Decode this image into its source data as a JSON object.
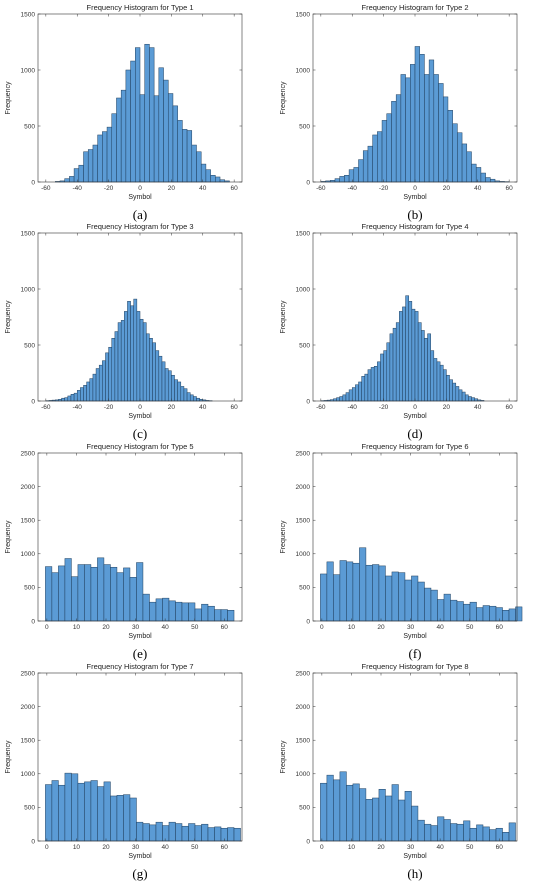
{
  "figure": {
    "colors": {
      "bar_fill": "#5b9bd5",
      "bar_edge": "#1f3f5e",
      "axis": "#333333"
    }
  },
  "chart_data": [
    {
      "type": "bar",
      "title": "Frequency Histogram for Type 1",
      "xlabel": "Symbol",
      "ylabel": "Frequency",
      "caption": "(a)",
      "xlim": [
        -65,
        65
      ],
      "ylim": [
        0,
        1500
      ],
      "xticks": [
        -60,
        -40,
        -20,
        0,
        20,
        40,
        60
      ],
      "yticks": [
        0,
        500,
        1000,
        1500
      ],
      "bin_start": -54,
      "bin_width": 3,
      "values": [
        5,
        10,
        30,
        50,
        120,
        150,
        270,
        290,
        330,
        420,
        450,
        490,
        610,
        750,
        820,
        1000,
        1080,
        1200,
        780,
        1230,
        1200,
        770,
        1020,
        910,
        790,
        680,
        550,
        470,
        460,
        330,
        270,
        160,
        110,
        60,
        45,
        20,
        10
      ]
    },
    {
      "type": "bar",
      "title": "Frequency Histogram for Type 2",
      "xlabel": "Symbol",
      "ylabel": "Frequency",
      "caption": "(b)",
      "xlim": [
        -65,
        65
      ],
      "ylim": [
        0,
        1500
      ],
      "xticks": [
        -60,
        -40,
        -20,
        0,
        20,
        40,
        60
      ],
      "yticks": [
        0,
        500,
        1000,
        1500
      ],
      "bin_start": -60,
      "bin_width": 3,
      "values": [
        5,
        10,
        15,
        30,
        50,
        60,
        110,
        130,
        200,
        280,
        320,
        420,
        450,
        550,
        610,
        720,
        780,
        960,
        930,
        1050,
        1210,
        1140,
        960,
        1090,
        960,
        880,
        760,
        640,
        520,
        440,
        340,
        270,
        160,
        130,
        80,
        40,
        25,
        10,
        5,
        3
      ]
    },
    {
      "type": "bar",
      "title": "Frequency Histogram for Type 3",
      "xlabel": "Symbol",
      "ylabel": "Frequency",
      "caption": "(c)",
      "xlim": [
        -65,
        65
      ],
      "ylim": [
        0,
        1500
      ],
      "xticks": [
        -60,
        -40,
        -20,
        0,
        20,
        40,
        60
      ],
      "yticks": [
        0,
        500,
        1000,
        1500
      ],
      "bin_start": -60,
      "bin_width": 2,
      "values": [
        3,
        5,
        8,
        10,
        15,
        25,
        30,
        45,
        60,
        70,
        95,
        120,
        140,
        170,
        200,
        240,
        290,
        320,
        360,
        430,
        480,
        560,
        620,
        700,
        720,
        800,
        890,
        850,
        910,
        800,
        730,
        700,
        600,
        560,
        520,
        450,
        400,
        350,
        290,
        270,
        230,
        190,
        170,
        130,
        110,
        75,
        55,
        40,
        25,
        15,
        10,
        5,
        3
      ]
    },
    {
      "type": "bar",
      "title": "Frequency Histogram for Type 4",
      "xlabel": "Symbol",
      "ylabel": "Frequency",
      "caption": "(d)",
      "xlim": [
        -65,
        65
      ],
      "ylim": [
        0,
        1500
      ],
      "xticks": [
        -60,
        -40,
        -20,
        0,
        20,
        40,
        60
      ],
      "yticks": [
        0,
        500,
        1000,
        1500
      ],
      "bin_start": -60,
      "bin_width": 2,
      "values": [
        3,
        5,
        8,
        12,
        20,
        30,
        40,
        55,
        75,
        100,
        120,
        145,
        170,
        220,
        240,
        280,
        300,
        310,
        350,
        420,
        450,
        520,
        600,
        650,
        700,
        800,
        840,
        940,
        890,
        820,
        800,
        700,
        630,
        560,
        600,
        450,
        380,
        350,
        320,
        280,
        230,
        190,
        160,
        130,
        100,
        80,
        55,
        40,
        30,
        20,
        10,
        5
      ]
    },
    {
      "type": "bar",
      "title": "Frequency Histogram for Type 5",
      "xlabel": "Symbol",
      "ylabel": "Frequency",
      "caption": "(e)",
      "xlim": [
        -3,
        66
      ],
      "ylim": [
        0,
        2500
      ],
      "xticks": [
        0,
        10,
        20,
        30,
        40,
        50,
        60
      ],
      "yticks": [
        0,
        500,
        1000,
        1500,
        2000,
        2500
      ],
      "bin_start": -0.5,
      "bin_width": 2.2,
      "values": [
        810,
        720,
        820,
        930,
        660,
        840,
        840,
        800,
        940,
        840,
        800,
        720,
        790,
        650,
        870,
        400,
        280,
        330,
        340,
        300,
        280,
        270,
        270,
        180,
        250,
        220,
        170,
        170,
        160
      ]
    },
    {
      "type": "bar",
      "title": "Frequency Histogram for Type 6",
      "xlabel": "Symbol",
      "ylabel": "Frequency",
      "caption": "(f)",
      "xlim": [
        -3,
        66
      ],
      "ylim": [
        0,
        2500
      ],
      "xticks": [
        0,
        10,
        20,
        30,
        40,
        50,
        60
      ],
      "yticks": [
        0,
        500,
        1000,
        1500,
        2000,
        2500
      ],
      "bin_start": -0.5,
      "bin_width": 2.2,
      "values": [
        700,
        880,
        690,
        900,
        880,
        860,
        1090,
        830,
        840,
        820,
        670,
        730,
        720,
        610,
        670,
        580,
        490,
        460,
        320,
        400,
        310,
        290,
        250,
        280,
        200,
        230,
        220,
        200,
        160,
        180,
        210
      ]
    },
    {
      "type": "bar",
      "title": "Frequency Histogram for Type 7",
      "xlabel": "Symbol",
      "ylabel": "Frequency",
      "caption": "(g)",
      "xlim": [
        -3,
        66
      ],
      "ylim": [
        0,
        2500
      ],
      "xticks": [
        0,
        10,
        20,
        30,
        40,
        50,
        60
      ],
      "yticks": [
        0,
        500,
        1000,
        1500,
        2000,
        2500
      ],
      "bin_start": -0.5,
      "bin_width": 2.2,
      "values": [
        840,
        900,
        830,
        1010,
        1000,
        860,
        880,
        900,
        810,
        880,
        670,
        680,
        690,
        640,
        280,
        260,
        240,
        280,
        230,
        280,
        260,
        220,
        260,
        230,
        250,
        200,
        210,
        190,
        200,
        190
      ]
    },
    {
      "type": "bar",
      "title": "Frequency Histogram for Type 8",
      "xlabel": "Symbol",
      "ylabel": "Frequency",
      "caption": "(h)",
      "xlim": [
        -3,
        66
      ],
      "ylim": [
        0,
        2500
      ],
      "xticks": [
        0,
        10,
        20,
        30,
        40,
        50,
        60
      ],
      "yticks": [
        0,
        500,
        1000,
        1500,
        2000,
        2500
      ],
      "bin_start": -0.5,
      "bin_width": 2.2,
      "values": [
        860,
        980,
        910,
        1030,
        830,
        850,
        780,
        620,
        640,
        770,
        670,
        840,
        610,
        740,
        520,
        310,
        250,
        230,
        360,
        320,
        260,
        250,
        300,
        190,
        240,
        210,
        170,
        190,
        130,
        270
      ]
    }
  ]
}
